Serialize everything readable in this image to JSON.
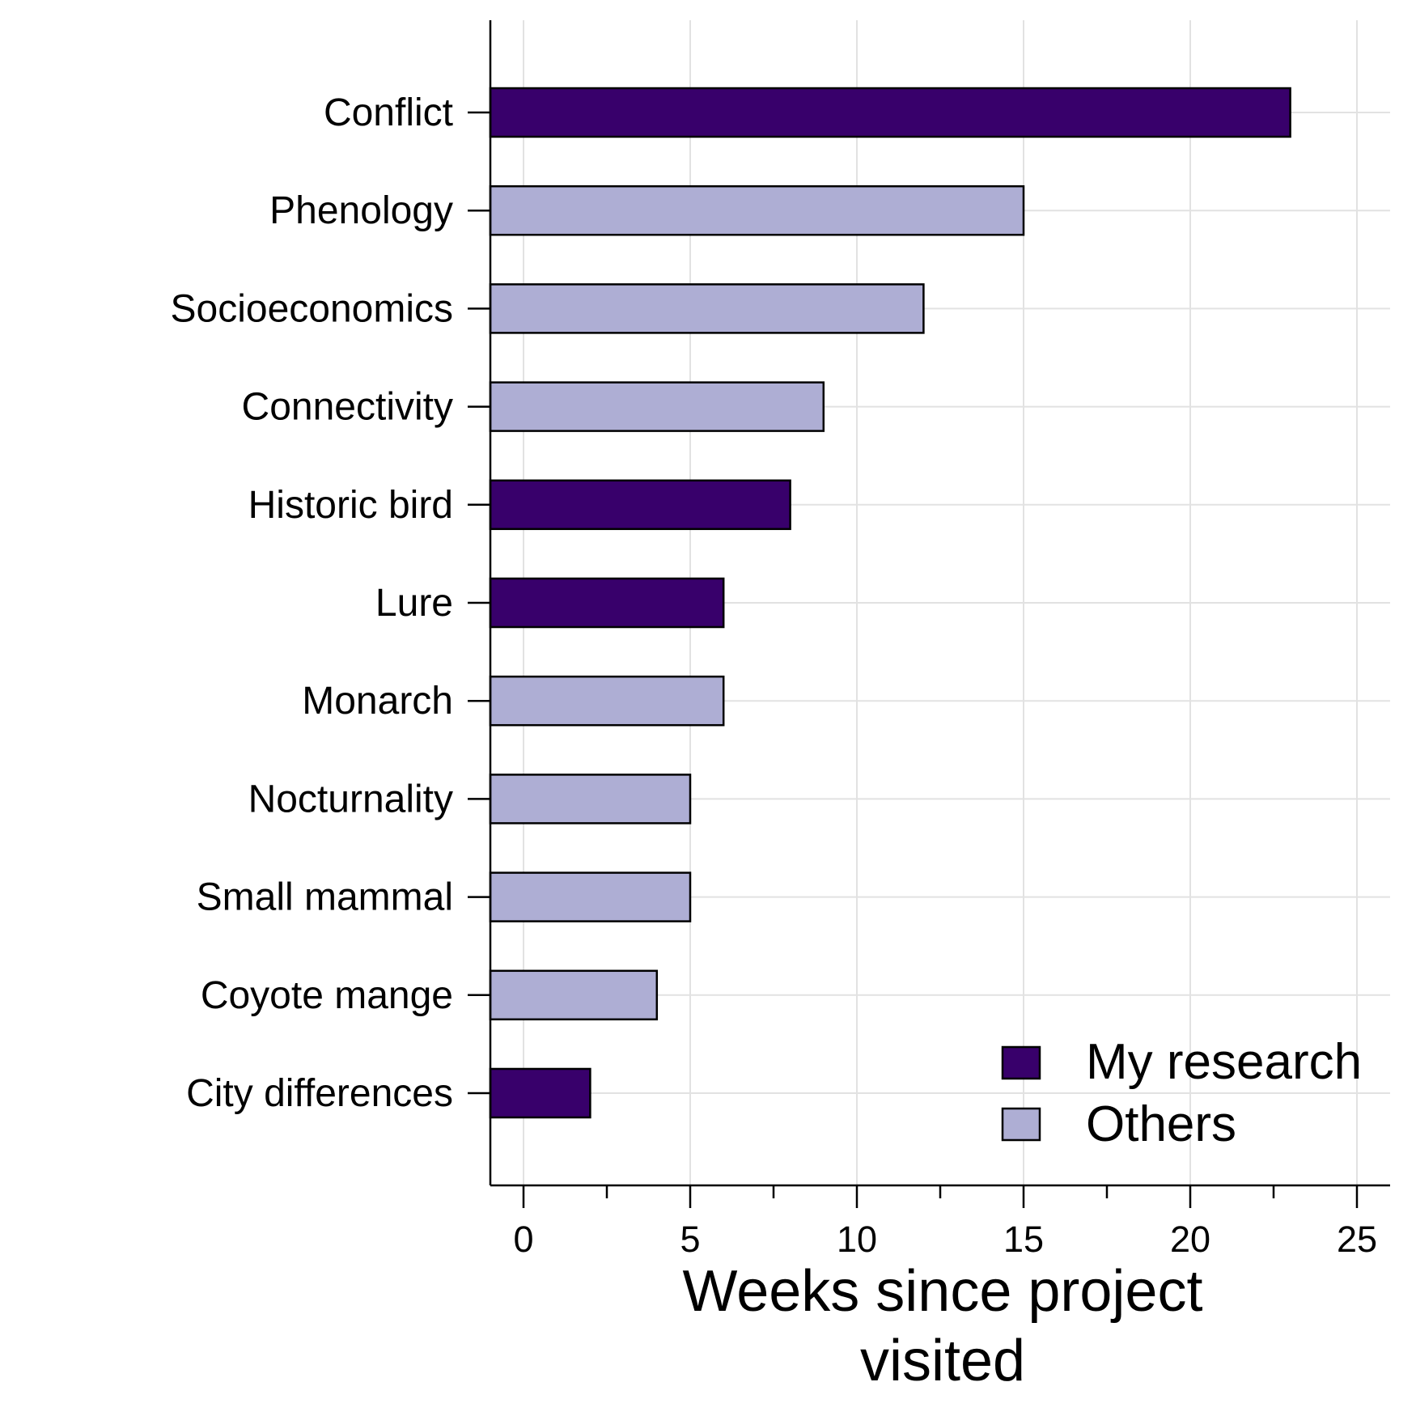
{
  "chart_data": {
    "type": "bar",
    "orientation": "horizontal",
    "categories": [
      "Conflict",
      "Phenology",
      "Socioeconomics",
      "Connectivity",
      "Historic bird",
      "Lure",
      "Monarch",
      "Nocturnality",
      "Small mammal",
      "Coyote mange",
      "City differences"
    ],
    "values": [
      23,
      15,
      12,
      9,
      8,
      6,
      6,
      5,
      5,
      4,
      2
    ],
    "groups": [
      "My research",
      "Others",
      "Others",
      "Others",
      "My research",
      "My research",
      "Others",
      "Others",
      "Others",
      "Others",
      "My research"
    ],
    "xlabel_lines": [
      "Weeks since project",
      "visited"
    ],
    "ylabel": "",
    "xlim": [
      -1,
      26
    ],
    "xticks": [
      0,
      5,
      10,
      15,
      20,
      25
    ],
    "grid": true,
    "legend": {
      "placement": "bottom-right",
      "entries": [
        {
          "name": "My research",
          "color": "#38006b"
        },
        {
          "name": "Others",
          "color": "#aeaed4"
        }
      ]
    }
  }
}
